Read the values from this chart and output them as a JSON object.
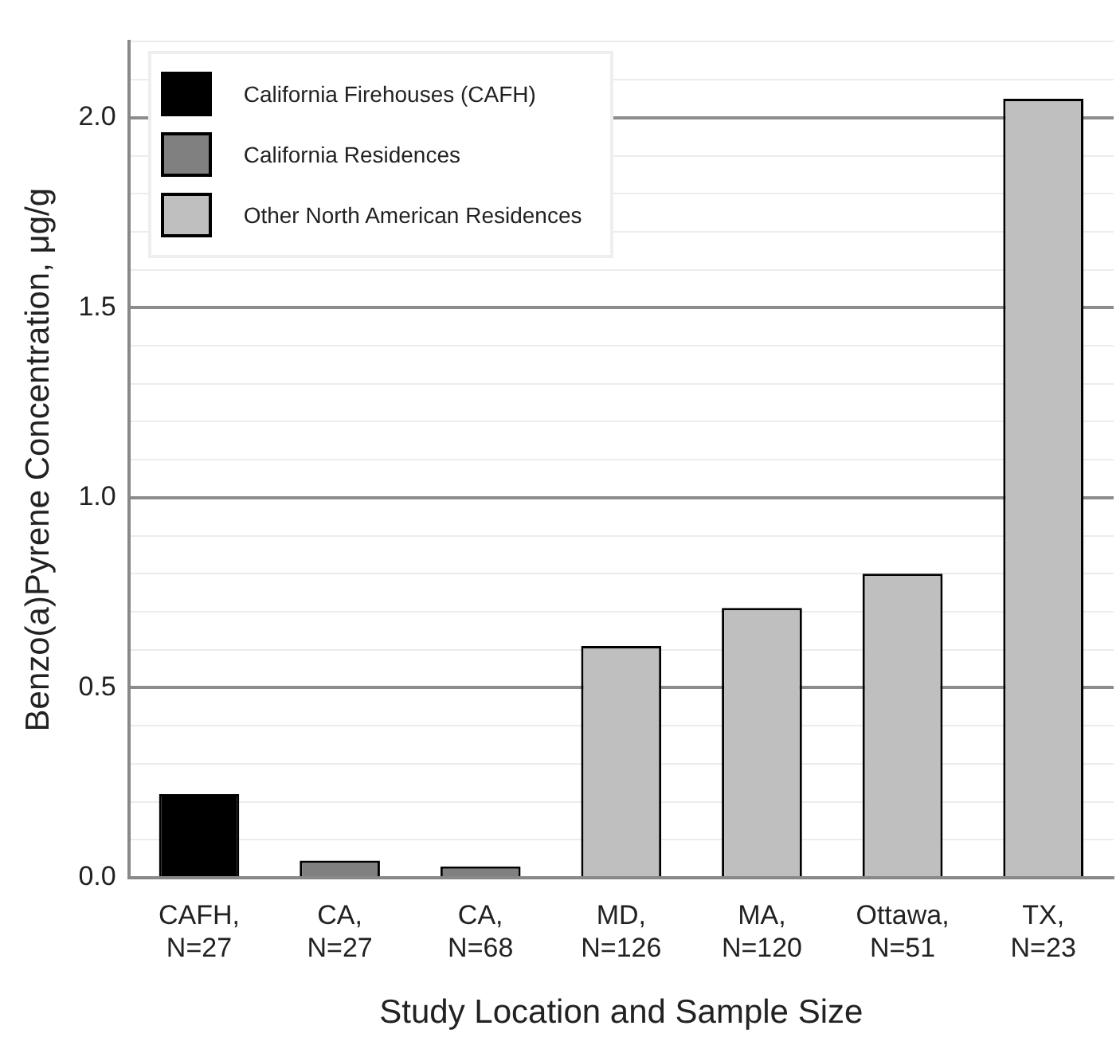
{
  "chart_data": {
    "type": "bar",
    "xlabel": "Study Location and Sample Size",
    "ylabel": "Benzo(a)Pyrene Concentration, μg/g",
    "categories": [
      "CAFH, N=27",
      "CA, N=27",
      "CA, N=68",
      "MD, N=126",
      "MA, N=120",
      "Ottawa, N=51",
      "TX, N=23"
    ],
    "series": [
      {
        "name": "California Firehouses (CAFH)",
        "color": "#000000",
        "values": [
          0.22,
          null,
          null,
          null,
          null,
          null,
          null
        ]
      },
      {
        "name": "California Residences",
        "color": "#808080",
        "values": [
          null,
          0.045,
          0.03,
          null,
          null,
          null,
          null
        ]
      },
      {
        "name": "Other North American Residences",
        "color": "#bfbfbf",
        "values": [
          null,
          null,
          null,
          0.61,
          0.71,
          0.8,
          2.05
        ]
      }
    ],
    "ylim": [
      0,
      2.2
    ],
    "yticks": [
      {
        "value": 0,
        "label": "0.0"
      },
      {
        "value": 0.1,
        "label": null
      },
      {
        "value": 0.2,
        "label": null
      },
      {
        "value": 0.3,
        "label": null
      },
      {
        "value": 0.4,
        "label": null
      },
      {
        "value": 0.5,
        "label": "0.5"
      },
      {
        "value": 0.6,
        "label": null
      },
      {
        "value": 0.7,
        "label": null
      },
      {
        "value": 0.8,
        "label": null
      },
      {
        "value": 0.9,
        "label": null
      },
      {
        "value": 1,
        "label": "1.0"
      },
      {
        "value": 1.1,
        "label": null
      },
      {
        "value": 1.2,
        "label": null
      },
      {
        "value": 1.3,
        "label": null
      },
      {
        "value": 1.4,
        "label": null
      },
      {
        "value": 1.5,
        "label": "1.5"
      },
      {
        "value": 1.6,
        "label": null
      },
      {
        "value": 1.7,
        "label": null
      },
      {
        "value": 1.8,
        "label": null
      },
      {
        "value": 1.9,
        "label": null
      },
      {
        "value": 2,
        "label": "2.0"
      },
      {
        "value": 2.1,
        "label": null
      },
      {
        "value": 2.2,
        "label": null
      }
    ],
    "grid": "y",
    "legend": "top left"
  }
}
